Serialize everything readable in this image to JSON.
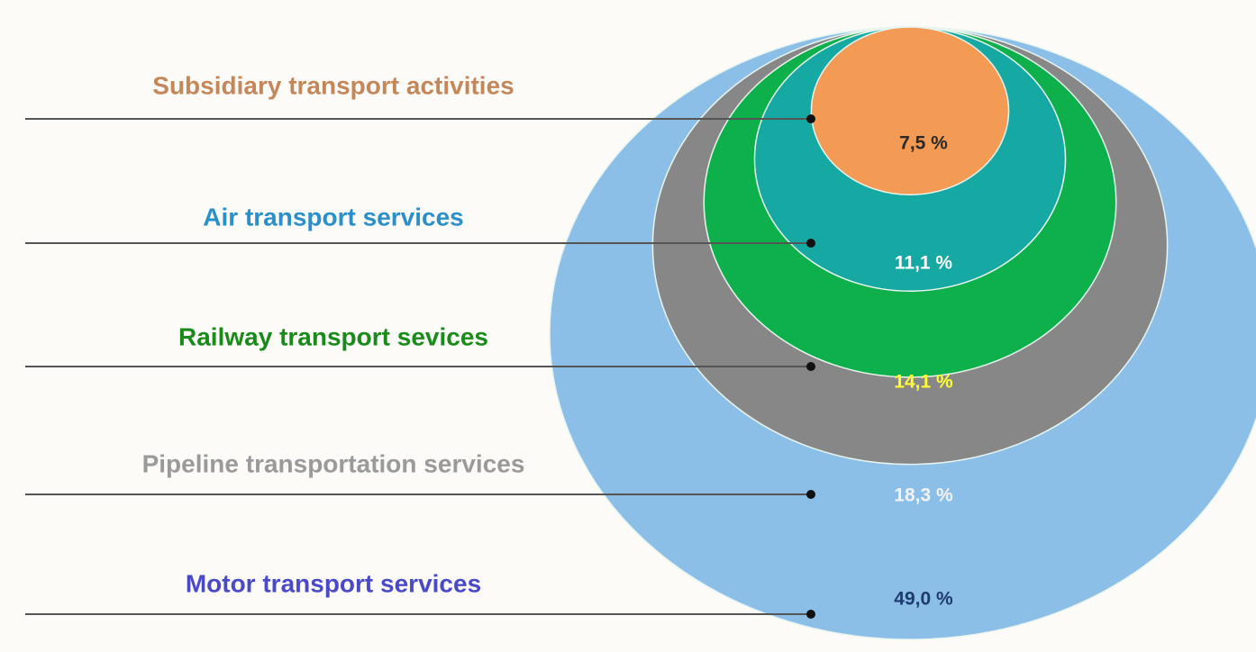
{
  "chart_data": {
    "type": "nested_circles",
    "categories": [
      "Subsidiary transport activities",
      "Air transport services",
      "Railway transport sevices",
      "Pipeline transportation services",
      "Motor transport services"
    ],
    "values": [
      7.5,
      11.1,
      14.1,
      18.3,
      49.0
    ],
    "value_labels": [
      "7,5 %",
      "11,1 %",
      "14,1 %",
      "18,3 %",
      "49,0 %"
    ],
    "colors": [
      "#f39b55",
      "#16a8a2",
      "#0db04b",
      "#878787",
      "#8bbfe8"
    ],
    "label_colors": [
      "#c4875a",
      "#2b8fc8",
      "#1a8a1a",
      "#9a9a9a",
      "#4a4ac8"
    ],
    "value_label_colors": [
      "#2a2a2a",
      "#ffffff",
      "#ffff33",
      "#f2f2f2",
      "#1f3a6e"
    ]
  }
}
